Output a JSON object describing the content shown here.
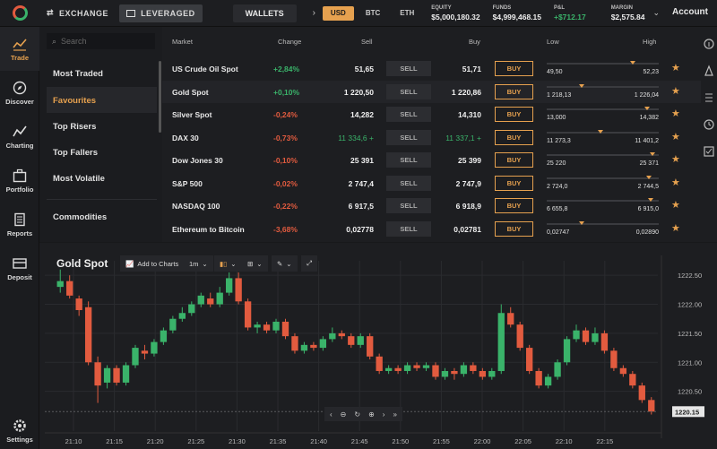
{
  "topbar": {
    "exchange_label": "EXCHANGE",
    "leveraged_label": "LEVERAGED",
    "wallets_label": "WALLETS",
    "currencies": [
      "USD",
      "BTC",
      "ETH"
    ],
    "equity_label": "EQUITY",
    "equity_value": "$5,000,180.32",
    "funds_label": "FUNDS",
    "funds_value": "$4,999,468.15",
    "pnl_label": "P&L",
    "pnl_value": "+$712.17",
    "margin_label": "MARGIN",
    "margin_value": "$2,575.84",
    "account_label": "Account"
  },
  "nav": {
    "trade": "Trade",
    "discover": "Discover",
    "charting": "Charting",
    "portfolio": "Portfolio",
    "reports": "Reports",
    "deposit": "Deposit",
    "settings": "Settings"
  },
  "categories": {
    "search_placeholder": "Search",
    "items": [
      "Most Traded",
      "Favourites",
      "Top Risers",
      "Top Fallers",
      "Most Volatile",
      "Commodities"
    ]
  },
  "market": {
    "headers": {
      "market": "Market",
      "change": "Change",
      "sell": "Sell",
      "buy": "Buy",
      "low": "Low",
      "high": "High"
    },
    "sell_label": "SELL",
    "buy_label": "BUY",
    "rows": [
      {
        "name": "US Crude Oil Spot",
        "change": "+2,84%",
        "sell": "51,65",
        "buy": "51,71",
        "low": "49,50",
        "high": "52,23",
        "pos": 0.78
      },
      {
        "name": "Gold Spot",
        "change": "+0,10%",
        "sell": "1 220,50",
        "buy": "1 220,86",
        "low": "1 218,13",
        "high": "1 226,04",
        "pos": 0.3
      },
      {
        "name": "Silver Spot",
        "change": "-0,24%",
        "sell": "14,282",
        "buy": "14,310",
        "low": "13,000",
        "high": "14,382",
        "pos": 0.92
      },
      {
        "name": "DAX 30",
        "change": "-0,73%",
        "sell": "11 334,6 +",
        "buy": "11 337,1 +",
        "low": "11 273,3",
        "high": "11 401,2",
        "pos": 0.48
      },
      {
        "name": "Dow Jones 30",
        "change": "-0,10%",
        "sell": "25 391",
        "buy": "25 399",
        "low": "25 220",
        "high": "25 371",
        "pos": 0.97
      },
      {
        "name": "S&P 500",
        "change": "-0,02%",
        "sell": "2 747,4",
        "buy": "2 747,9",
        "low": "2 724,0",
        "high": "2 744,5",
        "pos": 0.93
      },
      {
        "name": "NASDAQ 100",
        "change": "-0,22%",
        "sell": "6 917,5",
        "buy": "6 918,9",
        "low": "6 655,8",
        "high": "6 915,0",
        "pos": 0.95
      },
      {
        "name": "Ethereum to Bitcoin",
        "change": "-3,68%",
        "sell": "0,02778",
        "buy": "0,02781",
        "low": "0,02747",
        "high": "0,02890",
        "pos": 0.3
      }
    ]
  },
  "chart": {
    "title": "Gold Spot",
    "add_to_charts": "Add to Charts",
    "interval": "1m",
    "current_price": "1220.15"
  },
  "chart_data": {
    "type": "candlestick",
    "title": "Gold Spot",
    "y_ticks": [
      1220.5,
      1221.0,
      1221.5,
      1222.0,
      1222.5
    ],
    "y_tick_labels": [
      "1220.50",
      "1221.00",
      "1221.50",
      "1222.00",
      "1222.50"
    ],
    "x_ticks": [
      "21:10",
      "21:15",
      "21:20",
      "21:25",
      "21:30",
      "21:35",
      "21:40",
      "21:45",
      "21:50",
      "21:55",
      "22:00",
      "22:05",
      "22:10",
      "22:15"
    ],
    "ylim": [
      1220.0,
      1222.75
    ],
    "current_price": 1220.15,
    "candles": [
      [
        1222.3,
        1222.4,
        1222.6,
        1222.2
      ],
      [
        1222.4,
        1222.15,
        1222.5,
        1222.1
      ],
      [
        1222.1,
        1221.9,
        1222.15,
        1221.8
      ],
      [
        1221.95,
        1221.0,
        1222.05,
        1220.95
      ],
      [
        1221.0,
        1220.6,
        1221.1,
        1220.3
      ],
      [
        1220.65,
        1220.9,
        1220.95,
        1220.55
      ],
      [
        1220.9,
        1220.65,
        1220.95,
        1220.6
      ],
      [
        1220.65,
        1220.95,
        1221.0,
        1220.6
      ],
      [
        1220.95,
        1221.25,
        1221.3,
        1220.9
      ],
      [
        1221.2,
        1221.15,
        1221.3,
        1221.05
      ],
      [
        1221.15,
        1221.35,
        1221.4,
        1221.1
      ],
      [
        1221.35,
        1221.55,
        1221.6,
        1221.3
      ],
      [
        1221.55,
        1221.75,
        1221.8,
        1221.5
      ],
      [
        1221.75,
        1221.85,
        1221.95,
        1221.7
      ],
      [
        1221.85,
        1222.0,
        1222.05,
        1221.8
      ],
      [
        1222.0,
        1222.15,
        1222.2,
        1221.95
      ],
      [
        1222.1,
        1222.0,
        1222.2,
        1221.95
      ],
      [
        1222.0,
        1222.2,
        1222.3,
        1221.95
      ],
      [
        1222.2,
        1222.45,
        1222.55,
        1222.15
      ],
      [
        1222.45,
        1222.05,
        1222.55,
        1222.0
      ],
      [
        1222.05,
        1221.6,
        1222.1,
        1221.55
      ],
      [
        1221.6,
        1221.65,
        1221.7,
        1221.5
      ],
      [
        1221.65,
        1221.55,
        1221.7,
        1221.5
      ],
      [
        1221.55,
        1221.7,
        1221.75,
        1221.5
      ],
      [
        1221.7,
        1221.45,
        1221.75,
        1221.4
      ],
      [
        1221.45,
        1221.2,
        1221.5,
        1221.15
      ],
      [
        1221.2,
        1221.3,
        1221.35,
        1221.15
      ],
      [
        1221.3,
        1221.25,
        1221.35,
        1221.2
      ],
      [
        1221.25,
        1221.4,
        1221.45,
        1221.2
      ],
      [
        1221.4,
        1221.5,
        1221.6,
        1221.35
      ],
      [
        1221.5,
        1221.45,
        1221.55,
        1221.4
      ],
      [
        1221.45,
        1221.3,
        1221.5,
        1221.25
      ],
      [
        1221.3,
        1221.45,
        1221.5,
        1221.25
      ],
      [
        1221.45,
        1221.1,
        1221.5,
        1221.05
      ],
      [
        1221.1,
        1220.85,
        1221.15,
        1220.8
      ],
      [
        1220.85,
        1220.9,
        1220.95,
        1220.8
      ],
      [
        1220.9,
        1220.85,
        1220.95,
        1220.8
      ],
      [
        1220.85,
        1220.95,
        1221.0,
        1220.8
      ],
      [
        1220.95,
        1220.9,
        1221.0,
        1220.85
      ],
      [
        1220.9,
        1220.95,
        1221.0,
        1220.85
      ],
      [
        1220.95,
        1220.75,
        1221.0,
        1220.7
      ],
      [
        1220.75,
        1220.85,
        1220.9,
        1220.7
      ],
      [
        1220.85,
        1220.8,
        1220.9,
        1220.7
      ],
      [
        1220.8,
        1220.95,
        1221.0,
        1220.75
      ],
      [
        1220.95,
        1220.85,
        1221.0,
        1220.8
      ],
      [
        1220.85,
        1220.75,
        1220.9,
        1220.7
      ],
      [
        1220.75,
        1220.85,
        1220.9,
        1220.7
      ],
      [
        1220.85,
        1221.85,
        1222.0,
        1220.8
      ],
      [
        1221.85,
        1221.65,
        1221.95,
        1221.6
      ],
      [
        1221.65,
        1221.25,
        1221.7,
        1221.2
      ],
      [
        1221.25,
        1220.85,
        1221.3,
        1220.8
      ],
      [
        1220.85,
        1220.6,
        1220.9,
        1220.55
      ],
      [
        1220.6,
        1220.75,
        1220.8,
        1220.55
      ],
      [
        1220.75,
        1221.0,
        1221.05,
        1220.7
      ],
      [
        1221.0,
        1221.4,
        1221.45,
        1220.95
      ],
      [
        1221.4,
        1221.55,
        1221.65,
        1221.35
      ],
      [
        1221.55,
        1221.35,
        1221.6,
        1221.3
      ],
      [
        1221.35,
        1221.5,
        1221.6,
        1221.3
      ],
      [
        1221.5,
        1221.2,
        1221.55,
        1221.15
      ],
      [
        1221.2,
        1220.9,
        1221.25,
        1220.85
      ],
      [
        1220.9,
        1220.8,
        1220.95,
        1220.75
      ],
      [
        1220.8,
        1220.6,
        1220.85,
        1220.55
      ],
      [
        1220.6,
        1220.35,
        1220.65,
        1220.3
      ],
      [
        1220.35,
        1220.15,
        1220.4,
        1220.1
      ]
    ]
  },
  "colors": {
    "accent": "#e6a14f",
    "up": "#3ab36a",
    "down": "#e25b3f",
    "background": "#1d1e21"
  }
}
